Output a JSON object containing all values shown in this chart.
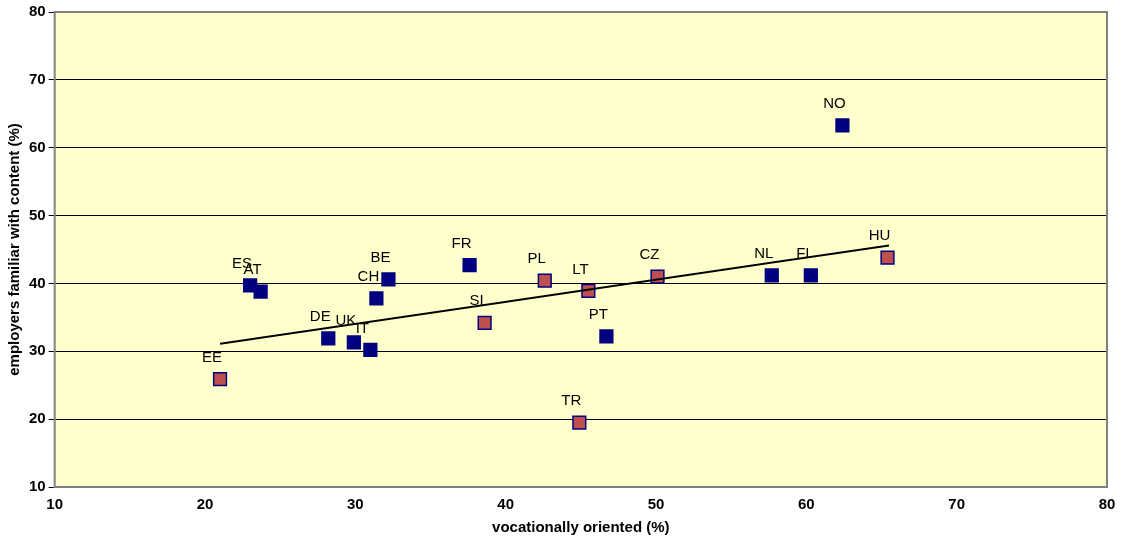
{
  "chart_data": {
    "type": "scatter",
    "xlabel": "vocationally oriented (%)",
    "ylabel": "employers familiar with content (%)",
    "xlim": [
      10,
      80
    ],
    "xticks": [
      10,
      20,
      30,
      40,
      50,
      60,
      70,
      80
    ],
    "ylim": [
      10,
      80
    ],
    "yticks": [
      10,
      20,
      30,
      40,
      50,
      60,
      70,
      80
    ],
    "grid": "y",
    "legend": false,
    "marker": "square",
    "series": [
      {
        "color": "#000080",
        "x": [
          23.0,
          23.7,
          28.2,
          29.9,
          31.0,
          31.4,
          32.2,
          37.6,
          46.7,
          57.7,
          60.3,
          62.4
        ],
        "values": [
          39.7,
          38.8,
          31.9,
          31.3,
          30.2,
          37.8,
          40.6,
          42.7,
          32.2,
          41.2,
          41.2,
          63.3
        ]
      },
      {
        "color": "#c0504d",
        "x": [
          21.0,
          38.6,
          42.6,
          45.5,
          44.9,
          50.1,
          65.4
        ],
        "values": [
          25.9,
          34.2,
          40.4,
          38.9,
          19.5,
          41.0,
          43.8
        ]
      },
      {
        "type": "line",
        "color": "#000000",
        "marker": "none",
        "x": [
          21.0,
          65.5
        ],
        "values": [
          31.1,
          45.6
        ]
      }
    ],
    "annotations": [
      {
        "text": "ES",
        "x": 23.0,
        "y": 39.7
      },
      {
        "text": "AT",
        "x": 23.7,
        "y": 38.8
      },
      {
        "text": "DE",
        "x": 28.2,
        "y": 31.9
      },
      {
        "text": "UK",
        "x": 29.9,
        "y": 31.3
      },
      {
        "text": "IT",
        "x": 31.0,
        "y": 30.2
      },
      {
        "text": "CH",
        "x": 31.4,
        "y": 37.8
      },
      {
        "text": "BE",
        "x": 32.2,
        "y": 40.6
      },
      {
        "text": "FR",
        "x": 37.6,
        "y": 42.7
      },
      {
        "text": "PT",
        "x": 46.7,
        "y": 32.2
      },
      {
        "text": "NL",
        "x": 57.7,
        "y": 41.2
      },
      {
        "text": "FI",
        "x": 60.3,
        "y": 41.2
      },
      {
        "text": "NO",
        "x": 62.4,
        "y": 63.3
      },
      {
        "text": "EE",
        "x": 21.0,
        "y": 25.9
      },
      {
        "text": "SI",
        "x": 38.6,
        "y": 34.2
      },
      {
        "text": "PL",
        "x": 42.6,
        "y": 40.4
      },
      {
        "text": "LT",
        "x": 45.5,
        "y": 38.9
      },
      {
        "text": "TR",
        "x": 44.9,
        "y": 19.5
      },
      {
        "text": "CZ",
        "x": 50.1,
        "y": 41.0
      },
      {
        "text": "HU",
        "x": 65.4,
        "y": 43.8
      }
    ]
  }
}
